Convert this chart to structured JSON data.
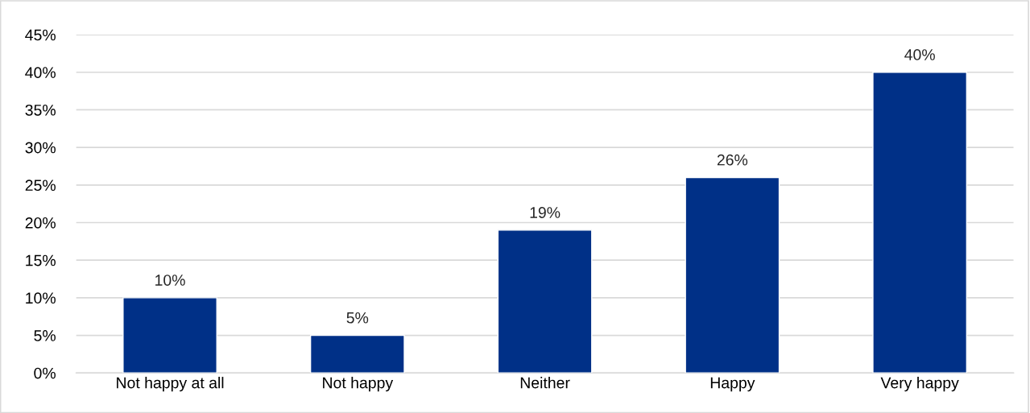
{
  "chart_data": {
    "type": "bar",
    "categories": [
      "Not happy at all",
      "Not happy",
      "Neither",
      "Happy",
      "Very happy"
    ],
    "values": [
      10,
      5,
      19,
      26,
      40
    ],
    "value_labels": [
      "10%",
      "5%",
      "19%",
      "26%",
      "40%"
    ],
    "color": "#003087",
    "ylim": [
      0,
      45
    ],
    "yticks": [
      {
        "value": 0,
        "label": "0%"
      },
      {
        "value": 5,
        "label": "5%"
      },
      {
        "value": 10,
        "label": "10%"
      },
      {
        "value": 15,
        "label": "15%"
      },
      {
        "value": 20,
        "label": "20%"
      },
      {
        "value": 25,
        "label": "25%"
      },
      {
        "value": 30,
        "label": "30%"
      },
      {
        "value": 35,
        "label": "35%"
      },
      {
        "value": 40,
        "label": "40%"
      },
      {
        "value": 45,
        "label": "45%"
      }
    ],
    "grid": "y",
    "legend": false
  }
}
